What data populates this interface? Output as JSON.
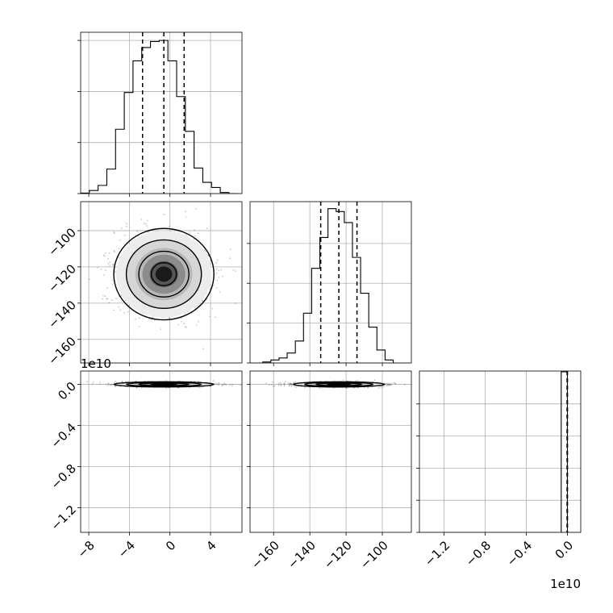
{
  "chart_data": {
    "type": "corner",
    "title": "",
    "params": [
      {
        "range": [
          -8.8,
          7.1
        ],
        "ticks": [
          -8,
          -4,
          0,
          4
        ],
        "tick_labels": [
          "−8",
          "−4",
          "0",
          "4"
        ]
      },
      {
        "range": [
          -173,
          -84
        ],
        "ticks": [
          -160,
          -140,
          -120,
          -100
        ],
        "tick_labels": [
          "−160",
          "−140",
          "−120",
          "−100"
        ]
      },
      {
        "range": [
          -1.44,
          0.13
        ],
        "offset_text": "1e10",
        "ticks": [
          -1.2,
          -0.8,
          -0.4,
          0.0
        ],
        "tick_labels": [
          "−1.2",
          "−0.8",
          "−0.4",
          "0.0"
        ]
      }
    ],
    "histograms": [
      {
        "param": 0,
        "bins": [
          -8.8,
          -7.94,
          -7.08,
          -6.22,
          -5.36,
          -4.5,
          -3.64,
          -2.78,
          -1.92,
          -1.06,
          -0.2,
          0.66,
          1.52,
          2.38,
          3.24,
          4.1,
          4.96,
          5.82,
          6.68
        ],
        "counts": [
          0.5,
          3,
          8,
          24,
          63,
          99,
          130,
          143,
          149,
          150,
          130,
          95,
          61,
          25,
          11,
          6,
          1,
          0
        ],
        "ymax": 158,
        "yticks": [
          0,
          50,
          100,
          150
        ],
        "quantiles": [
          -2.7,
          -0.6,
          1.4
        ]
      },
      {
        "param": 1,
        "bins": [
          -166,
          -161.5,
          -157,
          -152.5,
          -148,
          -143.5,
          -139,
          -134.5,
          -130,
          -125.5,
          -121,
          -116.5,
          -112,
          -107.5,
          -103,
          -98.5,
          -94
        ],
        "counts": [
          1,
          3,
          5,
          10,
          22,
          50,
          95,
          126,
          155,
          152,
          141,
          106,
          70,
          36,
          13,
          3
        ],
        "ymax": 162,
        "yticks": [
          0,
          40,
          80,
          120
        ],
        "quantiles": [
          -134,
          -124,
          -114
        ]
      },
      {
        "param": 2,
        "bins": [
          -0.06,
          0.0
        ],
        "counts": [
          1
        ],
        "ymax": 1.005,
        "yticks": [
          0,
          0.2,
          0.4,
          0.6,
          0.8
        ],
        "quantiles": [
          -0.003,
          0.0,
          0.0
        ]
      }
    ],
    "scatter_panels": [
      {
        "x_param": 0,
        "y_param": 1,
        "x_mean": -0.6,
        "x_sd": 2.35,
        "y_mean": -124,
        "y_sd": 12,
        "levels_sigma": [
          0.5,
          1.0,
          1.5,
          2.0
        ]
      },
      {
        "x_param": 0,
        "y_param": 2,
        "x_mean": -0.6,
        "x_sd": 2.35,
        "y_mean": 0.0,
        "y_sd": 0.012,
        "levels_sigma": [
          0.5,
          1.0,
          1.5,
          2.0
        ]
      },
      {
        "x_param": 1,
        "y_param": 2,
        "x_mean": -124,
        "x_sd": 12,
        "y_mean": 0.0,
        "y_sd": 0.012,
        "levels_sigma": [
          0.5,
          1.0,
          1.5,
          2.0
        ]
      }
    ]
  }
}
